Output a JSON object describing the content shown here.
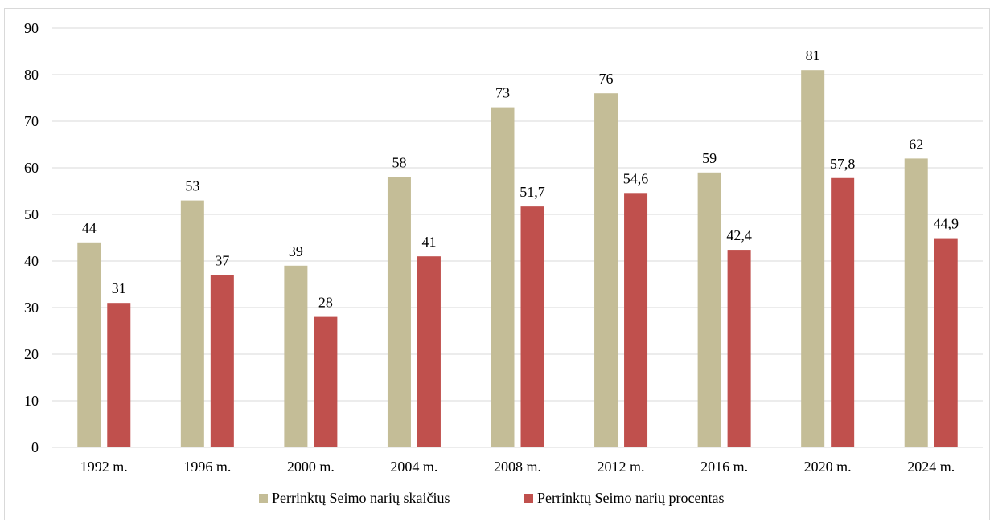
{
  "chart_data": {
    "type": "bar",
    "title": "",
    "xlabel": "",
    "ylabel": "",
    "categories": [
      "1992 m.",
      "1996 m.",
      "2000 m.",
      "2004 m.",
      "2008 m.",
      "2012 m.",
      "2016 m.",
      "2020 m.",
      "2024 m."
    ],
    "series": [
      {
        "name": "Perrinktų Seimo narių skaičius",
        "values": [
          44,
          53,
          39,
          58,
          73,
          76,
          59,
          81,
          62
        ],
        "labels": [
          "44",
          "53",
          "39",
          "58",
          "73",
          "76",
          "59",
          "81",
          "62"
        ],
        "color": "#c4bd97"
      },
      {
        "name": "Perrinktų Seimo narių procentas",
        "values": [
          31,
          37,
          28,
          41,
          51.7,
          54.6,
          42.4,
          57.8,
          44.9
        ],
        "labels": [
          "31",
          "37",
          "28",
          "41",
          "51,7",
          "54,6",
          "42,4",
          "57,8",
          "44,9"
        ],
        "color": "#c0504d"
      }
    ],
    "ylim": [
      0,
      90
    ],
    "yticks": [
      0,
      10,
      20,
      30,
      40,
      50,
      60,
      70,
      80,
      90
    ],
    "grid": true,
    "gridline_color": "#d9d9d9",
    "legend": "bottom"
  }
}
